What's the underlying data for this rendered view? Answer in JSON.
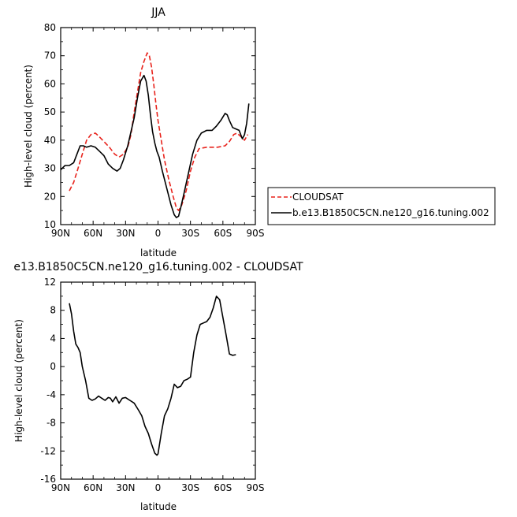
{
  "figure": {
    "top_panel_title": "JJA",
    "bottom_panel_title": "e13.B1850C5CN.ne120_g16.tuning.002  -  CLOUDSAT"
  },
  "legend": {
    "items": [
      {
        "label": "CLOUDSAT",
        "color": "#e8231c",
        "dash": "dashed"
      },
      {
        "label": "b.e13.B1850C5CN.ne120_g16.tuning.002",
        "color": "#000000",
        "dash": "solid"
      }
    ]
  },
  "chart_data": [
    {
      "type": "line",
      "title": "JJA",
      "xlabel": "latitude",
      "ylabel": "High-level cloud (percent)",
      "xlim": [
        90,
        -90
      ],
      "ylim": [
        10,
        80
      ],
      "x_ticks": [
        90,
        60,
        30,
        0,
        -30,
        -60,
        -90
      ],
      "x_tick_labels": [
        "90N",
        "60N",
        "30N",
        "0",
        "30S",
        "60S",
        "90S"
      ],
      "y_ticks": [
        10,
        20,
        30,
        40,
        50,
        60,
        70,
        80
      ],
      "y_tick_labels": [
        "10",
        "20",
        "30",
        "40",
        "50",
        "60",
        "70",
        "80"
      ],
      "series": [
        {
          "name": "CLOUDSAT",
          "color": "#e8231c",
          "dash": "dashed",
          "points": [
            [
              82,
              22
            ],
            [
              78,
              25
            ],
            [
              74,
              30
            ],
            [
              70,
              35
            ],
            [
              66,
              40
            ],
            [
              62,
              42
            ],
            [
              58,
              42.5
            ],
            [
              55,
              41.5
            ],
            [
              50,
              39.5
            ],
            [
              45,
              37.5
            ],
            [
              40,
              35
            ],
            [
              36,
              34
            ],
            [
              32,
              35
            ],
            [
              28,
              37.5
            ],
            [
              25,
              42
            ],
            [
              22,
              50
            ],
            [
              19,
              57
            ],
            [
              16,
              64
            ],
            [
              13,
              68
            ],
            [
              10,
              71
            ],
            [
              8,
              70
            ],
            [
              6,
              66
            ],
            [
              4,
              60
            ],
            [
              2,
              53
            ],
            [
              0,
              47
            ],
            [
              -3,
              40
            ],
            [
              -6,
              33
            ],
            [
              -10,
              26
            ],
            [
              -14,
              20
            ],
            [
              -17,
              16
            ],
            [
              -19,
              15
            ],
            [
              -22,
              17
            ],
            [
              -26,
              22
            ],
            [
              -30,
              29
            ],
            [
              -34,
              34
            ],
            [
              -38,
              37
            ],
            [
              -45,
              37.5
            ],
            [
              -55,
              37.5
            ],
            [
              -62,
              38
            ],
            [
              -66,
              39.5
            ],
            [
              -70,
              42
            ],
            [
              -73,
              42.5
            ],
            [
              -76,
              41.5
            ],
            [
              -80,
              40
            ],
            [
              -83,
              42
            ]
          ]
        },
        {
          "name": "b.e13.B1850C5CN.ne120_g16.tuning.002",
          "color": "#000000",
          "dash": "solid",
          "points": [
            [
              90,
              29.5
            ],
            [
              86,
              31
            ],
            [
              82,
              31
            ],
            [
              78,
              32
            ],
            [
              75,
              35
            ],
            [
              72,
              38
            ],
            [
              69,
              38
            ],
            [
              66,
              37.5
            ],
            [
              62,
              38
            ],
            [
              58,
              37.5
            ],
            [
              54,
              36
            ],
            [
              50,
              34.5
            ],
            [
              46,
              31.5
            ],
            [
              42,
              30
            ],
            [
              38,
              29
            ],
            [
              35,
              30
            ],
            [
              32,
              33
            ],
            [
              28,
              38
            ],
            [
              25,
              43
            ],
            [
              22,
              48
            ],
            [
              19,
              55
            ],
            [
              16,
              61
            ],
            [
              13,
              63
            ],
            [
              11,
              61
            ],
            [
              9,
              56
            ],
            [
              7,
              49
            ],
            [
              5,
              43
            ],
            [
              3,
              39
            ],
            [
              1,
              36
            ],
            [
              -1,
              34
            ],
            [
              -4,
              29
            ],
            [
              -8,
              23
            ],
            [
              -12,
              17
            ],
            [
              -15,
              13.5
            ],
            [
              -17,
              12.5
            ],
            [
              -19,
              13
            ],
            [
              -21,
              16
            ],
            [
              -24,
              21
            ],
            [
              -28,
              28
            ],
            [
              -32,
              35
            ],
            [
              -36,
              40
            ],
            [
              -40,
              42.5
            ],
            [
              -45,
              43.5
            ],
            [
              -50,
              43.5
            ],
            [
              -54,
              45
            ],
            [
              -58,
              47
            ],
            [
              -62,
              49.5
            ],
            [
              -64,
              49
            ],
            [
              -66,
              47
            ],
            [
              -69,
              44.5
            ],
            [
              -72,
              44
            ],
            [
              -75,
              43.5
            ],
            [
              -78,
              40.5
            ],
            [
              -80,
              42
            ],
            [
              -82,
              46
            ],
            [
              -84,
              53
            ]
          ]
        }
      ]
    },
    {
      "type": "line",
      "title": "e13.B1850C5CN.ne120_g16.tuning.002  -  CLOUDSAT",
      "xlabel": "latitude",
      "ylabel": "High-level cloud (percent)",
      "xlim": [
        90,
        -90
      ],
      "ylim": [
        -16,
        12
      ],
      "x_ticks": [
        90,
        60,
        30,
        0,
        -30,
        -60,
        -90
      ],
      "x_tick_labels": [
        "90N",
        "60N",
        "30N",
        "0",
        "30S",
        "60S",
        "90S"
      ],
      "y_ticks": [
        -16,
        -12,
        -8,
        -4,
        0,
        4,
        8,
        12
      ],
      "y_tick_labels": [
        "-16",
        "-12",
        "-8",
        "-4",
        "0",
        "4",
        "8",
        "12"
      ],
      "series": [
        {
          "name": "",
          "color": "#000000",
          "dash": "solid",
          "points": [
            [
              82,
              9
            ],
            [
              80,
              7.5
            ],
            [
              78,
              5
            ],
            [
              76,
              3.2
            ],
            [
              74,
              2.7
            ],
            [
              72,
              2
            ],
            [
              70,
              0
            ],
            [
              67,
              -2
            ],
            [
              64,
              -4.5
            ],
            [
              61,
              -4.8
            ],
            [
              58,
              -4.6
            ],
            [
              55,
              -4.2
            ],
            [
              52,
              -4.5
            ],
            [
              49,
              -4.8
            ],
            [
              46,
              -4.4
            ],
            [
              44,
              -4.5
            ],
            [
              42,
              -5
            ],
            [
              39,
              -4.3
            ],
            [
              36,
              -5.2
            ],
            [
              33,
              -4.5
            ],
            [
              30,
              -4.4
            ],
            [
              26,
              -4.8
            ],
            [
              22,
              -5.2
            ],
            [
              18,
              -6.2
            ],
            [
              15,
              -7
            ],
            [
              12,
              -8.5
            ],
            [
              9,
              -9.5
            ],
            [
              6,
              -11
            ],
            [
              3,
              -12.3
            ],
            [
              1,
              -12.6
            ],
            [
              0,
              -12.4
            ],
            [
              -3,
              -9.5
            ],
            [
              -6,
              -7
            ],
            [
              -9,
              -6
            ],
            [
              -12,
              -4.5
            ],
            [
              -15,
              -2.5
            ],
            [
              -18,
              -3
            ],
            [
              -21,
              -2.8
            ],
            [
              -24,
              -2
            ],
            [
              -27,
              -1.8
            ],
            [
              -30,
              -1.5
            ],
            [
              -33,
              2
            ],
            [
              -36,
              4.5
            ],
            [
              -39,
              6
            ],
            [
              -42,
              6.2
            ],
            [
              -45,
              6.4
            ],
            [
              -48,
              7
            ],
            [
              -51,
              8.3
            ],
            [
              -54,
              10
            ],
            [
              -57,
              9.5
            ],
            [
              -60,
              7
            ],
            [
              -63,
              4.5
            ],
            [
              -66,
              1.8
            ],
            [
              -69,
              1.6
            ],
            [
              -72,
              1.7
            ]
          ]
        }
      ]
    }
  ]
}
